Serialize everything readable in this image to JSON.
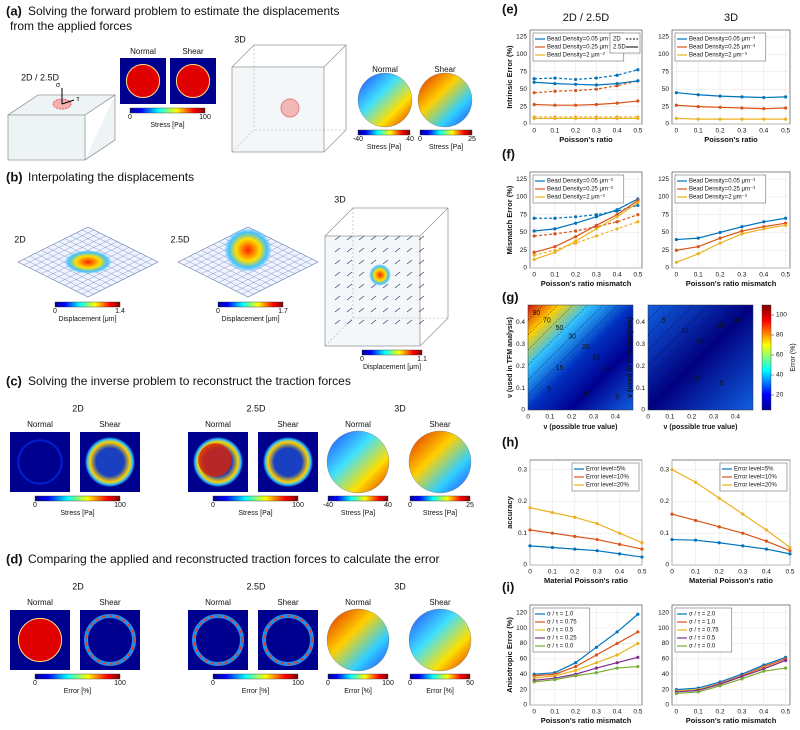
{
  "panel_a": {
    "label": "(a)",
    "title": [
      "Solving the forward problem to estimate the displacements",
      "from the applied forces"
    ],
    "view_2d": "2D / 2.5D",
    "sigma": "σ",
    "tau": "τ",
    "maps": [
      "Normal",
      "Shear"
    ],
    "map_colorbar": {
      "min": 0,
      "max": 100,
      "label": "Stress [Pa]"
    },
    "view_3d": "3D",
    "spheres": [
      "Normal",
      "Shear"
    ],
    "sphere_colorbars": [
      {
        "min": -40,
        "max": 40,
        "label": "Stress [Pa]"
      },
      {
        "min": 0,
        "max": 25,
        "label": "Stress [Pa]"
      }
    ]
  },
  "panel_b": {
    "label": "(b)",
    "title": "Interpolating the displacements",
    "views": [
      {
        "name": "2D",
        "colorbar": {
          "min": 0,
          "max": 1.4,
          "label": "Displacement [μm]"
        }
      },
      {
        "name": "2.5D",
        "colorbar": {
          "min": 0,
          "max": 1.7,
          "label": "Displacement [μm]"
        }
      },
      {
        "name": "3D",
        "colorbar": {
          "min": 0,
          "max": 1.1,
          "label": "Displacement [μm]"
        }
      }
    ]
  },
  "panel_c": {
    "label": "(c)",
    "title": "Solving the inverse problem to reconstruct the traction forces",
    "views": [
      {
        "name": "2D",
        "maps": [
          "Normal",
          "Shear"
        ],
        "colorbars": [
          {
            "min": 0,
            "max": 100,
            "label": "Stress [Pa]"
          }
        ]
      },
      {
        "name": "2.5D",
        "maps": [
          "Normal",
          "Shear"
        ],
        "colorbars": [
          {
            "min": 0,
            "max": 100,
            "label": "Stress [Pa]"
          }
        ]
      },
      {
        "name": "3D",
        "maps": [
          "Normal",
          "Shear"
        ],
        "colorbars": [
          {
            "min": -40,
            "max": 40,
            "label": "Stress [Pa]"
          },
          {
            "min": 0,
            "max": 25,
            "label": "Stress [Pa]"
          }
        ]
      }
    ]
  },
  "panel_d": {
    "label": "(d)",
    "title": "Comparing the applied and reconstructed traction forces to calculate the error",
    "views": [
      {
        "name": "2D",
        "maps": [
          "Normal",
          "Shear"
        ],
        "colorbars": [
          {
            "min": 0,
            "max": 100,
            "label": "Error [%]"
          }
        ]
      },
      {
        "name": "2.5D",
        "maps": [
          "Normal",
          "Shear"
        ],
        "colorbars": [
          {
            "min": 0,
            "max": 100,
            "label": "Error [%]"
          }
        ]
      },
      {
        "name": "3D",
        "maps": [
          "Normal",
          "Shear"
        ],
        "colorbars": [
          {
            "min": 0,
            "max": 100,
            "label": "Error [%]"
          },
          {
            "min": 0,
            "max": 50,
            "label": "Error [%]"
          }
        ]
      }
    ]
  },
  "panel_g": {
    "label": "(g)",
    "ylabel": "ν (used in TFM analysis)",
    "xlabel": "ν (possible true value)",
    "ticks": [
      0,
      0.1,
      0.2,
      0.3,
      0.4
    ],
    "colorbar_ticks": [
      20,
      40,
      60,
      80,
      100
    ],
    "colorbar_label": "Error (%)",
    "contours": [
      [
        "90",
        "70",
        "50",
        "30",
        "20",
        "15",
        "10",
        "5",
        "5",
        "10",
        "15"
      ],
      [
        "5",
        "10",
        "15",
        "20",
        "30",
        "5",
        "10"
      ]
    ]
  },
  "chart_data": [
    {
      "type": "line",
      "label": "(e)",
      "column_title": "2D / 2.5D",
      "ylabel": "Intrinsic Error (%)",
      "xlabel": "Poisson's ratio",
      "legend": "upper left",
      "x": [
        0,
        0.1,
        0.2,
        0.3,
        0.4,
        0.5
      ],
      "xlim": [
        -0.02,
        0.52
      ],
      "ylim": [
        0,
        135
      ],
      "xticks": [
        0,
        0.1,
        0.2,
        0.3,
        0.4,
        0.5
      ],
      "yticks": [
        0,
        25,
        50,
        75,
        100,
        125
      ],
      "series": [
        {
          "name": "Bead Density=0.05 μm⁻²",
          "color": "#0072bd",
          "values": [
            60,
            58,
            57,
            56,
            58,
            62
          ]
        },
        {
          "name": "Bead Density=0.25 μm⁻²",
          "color": "#d95319",
          "values": [
            28,
            27,
            27,
            28,
            30,
            33
          ]
        },
        {
          "name": "Bead Density=2 μm⁻²",
          "color": "#edb120",
          "values": [
            8,
            8,
            8,
            8,
            8,
            8
          ]
        }
      ],
      "dashed_series": [
        {
          "color": "#0072bd",
          "values": [
            65,
            66,
            64,
            66,
            70,
            78
          ]
        },
        {
          "color": "#d95319",
          "values": [
            45,
            47,
            48,
            50,
            55,
            62
          ]
        },
        {
          "color": "#edb120",
          "values": [
            10,
            10,
            10,
            10,
            10,
            10
          ]
        }
      ],
      "style_legend": [
        {
          "name": "2D",
          "dash": true
        },
        {
          "name": "2.5D",
          "dash": false
        }
      ]
    },
    {
      "type": "line",
      "column_title": "3D",
      "xlabel": "Poisson's ratio",
      "legend": "upper left",
      "x": [
        0,
        0.1,
        0.2,
        0.3,
        0.4,
        0.5
      ],
      "xlim": [
        -0.02,
        0.52
      ],
      "ylim": [
        0,
        135
      ],
      "xticks": [
        0,
        0.1,
        0.2,
        0.3,
        0.4,
        0.5
      ],
      "yticks": [
        0,
        25,
        50,
        75,
        100,
        125
      ],
      "series": [
        {
          "name": "Bead Density=0.05 μm⁻³",
          "color": "#0072bd",
          "values": [
            45,
            42,
            40,
            39,
            38,
            39
          ]
        },
        {
          "name": "Bead Density=0.25 μm⁻³",
          "color": "#d95319",
          "values": [
            27,
            25,
            24,
            23,
            22,
            23
          ]
        },
        {
          "name": "Bead Density=2 μm⁻³",
          "color": "#edb120",
          "values": [
            8,
            7,
            7,
            7,
            7,
            7
          ]
        }
      ]
    },
    {
      "type": "line",
      "label": "(f)",
      "ylabel": "Mismatch Error (%)",
      "xlabel": "Poisson's ratio mismatch",
      "legend": "upper left",
      "x": [
        0,
        0.1,
        0.2,
        0.3,
        0.4,
        0.5
      ],
      "xlim": [
        -0.02,
        0.52
      ],
      "ylim": [
        0,
        135
      ],
      "xticks": [
        0,
        0.1,
        0.2,
        0.3,
        0.4,
        0.5
      ],
      "yticks": [
        0,
        25,
        50,
        75,
        100,
        125
      ],
      "series": [
        {
          "name": "Bead Density=0.05 μm⁻²",
          "color": "#0072bd",
          "values": [
            52,
            55,
            63,
            72,
            82,
            97
          ]
        },
        {
          "name": "Bead Density=0.25 μm⁻²",
          "color": "#d95319",
          "values": [
            22,
            30,
            44,
            60,
            75,
            95
          ]
        },
        {
          "name": "Bead Density=2 μm⁻²",
          "color": "#edb120",
          "values": [
            12,
            22,
            38,
            55,
            72,
            92
          ]
        }
      ],
      "dashed_series": [
        {
          "color": "#0072bd",
          "values": [
            70,
            70,
            72,
            75,
            80,
            88
          ]
        },
        {
          "color": "#d95319",
          "values": [
            45,
            48,
            52,
            58,
            65,
            75
          ]
        },
        {
          "color": "#edb120",
          "values": [
            18,
            25,
            35,
            45,
            55,
            65
          ]
        }
      ]
    },
    {
      "type": "line",
      "xlabel": "Poisson's ratio mismatch",
      "legend": "upper left",
      "x": [
        0,
        0.1,
        0.2,
        0.3,
        0.4,
        0.5
      ],
      "xlim": [
        -0.02,
        0.52
      ],
      "ylim": [
        0,
        135
      ],
      "xticks": [
        0,
        0.1,
        0.2,
        0.3,
        0.4,
        0.5
      ],
      "yticks": [
        0,
        25,
        50,
        75,
        100,
        125
      ],
      "series": [
        {
          "name": "Bead Density=0.05 μm⁻³",
          "color": "#0072bd",
          "values": [
            40,
            42,
            50,
            58,
            65,
            70
          ]
        },
        {
          "name": "Bead Density=0.25 μm⁻³",
          "color": "#d95319",
          "values": [
            25,
            30,
            42,
            52,
            58,
            63
          ]
        },
        {
          "name": "Bead Density=2 μm⁻³",
          "color": "#edb120",
          "values": [
            8,
            20,
            35,
            48,
            55,
            60
          ]
        }
      ]
    },
    {
      "type": "line",
      "label": "(h)",
      "ylabel": "accuracy",
      "xlabel": "Material Poisson's ratio",
      "legend": "upper right",
      "x": [
        0,
        0.1,
        0.2,
        0.3,
        0.4,
        0.5
      ],
      "xlim": [
        0,
        0.5
      ],
      "ylim": [
        0,
        0.33
      ],
      "xticks": [
        0,
        0.1,
        0.2,
        0.3,
        0.4,
        0.5
      ],
      "yticks": [
        0,
        0.1,
        0.2,
        0.3
      ],
      "series": [
        {
          "name": "Error level=5%",
          "color": "#0072bd",
          "values": [
            0.06,
            0.055,
            0.05,
            0.045,
            0.035,
            0.025
          ]
        },
        {
          "name": "Error level=10%",
          "color": "#d95319",
          "values": [
            0.11,
            0.1,
            0.09,
            0.08,
            0.065,
            0.05
          ]
        },
        {
          "name": "Error level=20%",
          "color": "#edb120",
          "values": [
            0.18,
            0.165,
            0.15,
            0.13,
            0.1,
            0.07
          ]
        }
      ]
    },
    {
      "type": "line",
      "xlabel": "Material Poisson's ratio",
      "legend": "upper right",
      "x": [
        0,
        0.1,
        0.2,
        0.3,
        0.4,
        0.5
      ],
      "xlim": [
        0,
        0.5
      ],
      "ylim": [
        0,
        0.33
      ],
      "xticks": [
        0,
        0.1,
        0.2,
        0.3,
        0.4,
        0.5
      ],
      "yticks": [
        0,
        0.1,
        0.2,
        0.3
      ],
      "series": [
        {
          "name": "Error level=5%",
          "color": "#0072bd",
          "values": [
            0.08,
            0.078,
            0.07,
            0.06,
            0.05,
            0.035
          ]
        },
        {
          "name": "Error level=10%",
          "color": "#d95319",
          "values": [
            0.16,
            0.14,
            0.12,
            0.1,
            0.075,
            0.045
          ]
        },
        {
          "name": "Error level=20%",
          "color": "#edb120",
          "values": [
            0.3,
            0.26,
            0.21,
            0.16,
            0.11,
            0.055
          ]
        }
      ]
    },
    {
      "type": "line",
      "label": "(i)",
      "ylabel": "Anisotropic Error (%)",
      "xlabel": "Poisson's ratio mismatch",
      "legend": "upper left",
      "x": [
        0,
        0.1,
        0.2,
        0.3,
        0.4,
        0.5
      ],
      "xlim": [
        -0.02,
        0.52
      ],
      "ylim": [
        0,
        130
      ],
      "xticks": [
        0,
        0.1,
        0.2,
        0.3,
        0.4,
        0.5
      ],
      "yticks": [
        0,
        20,
        40,
        60,
        80,
        100,
        120
      ],
      "series": [
        {
          "name": "σ / τ = 1.0",
          "color": "#0072bd",
          "values": [
            40,
            42,
            55,
            75,
            95,
            118
          ]
        },
        {
          "name": "σ / τ = 0.75",
          "color": "#d95319",
          "values": [
            38,
            40,
            50,
            65,
            80,
            95
          ]
        },
        {
          "name": "σ / τ = 0.5",
          "color": "#edb120",
          "values": [
            35,
            38,
            45,
            55,
            65,
            80
          ]
        },
        {
          "name": "σ / τ = 0.25",
          "color": "#7e2f8e",
          "values": [
            32,
            35,
            40,
            48,
            55,
            62
          ]
        },
        {
          "name": "σ / τ = 0.0",
          "color": "#77ac30",
          "values": [
            30,
            33,
            38,
            42,
            48,
            50
          ]
        }
      ]
    },
    {
      "type": "line",
      "xlabel": "Poisson's ratio mismatch",
      "legend": "upper left",
      "x": [
        0,
        0.1,
        0.2,
        0.3,
        0.4,
        0.5
      ],
      "xlim": [
        -0.02,
        0.52
      ],
      "ylim": [
        0,
        130
      ],
      "xticks": [
        0,
        0.1,
        0.2,
        0.3,
        0.4,
        0.5
      ],
      "yticks": [
        0,
        20,
        40,
        60,
        80,
        100,
        120
      ],
      "series": [
        {
          "name": "σ / τ = 2.0",
          "color": "#0072bd",
          "values": [
            20,
            22,
            30,
            40,
            52,
            62
          ]
        },
        {
          "name": "σ / τ = 1.0",
          "color": "#d95319",
          "values": [
            18,
            20,
            28,
            38,
            50,
            60
          ]
        },
        {
          "name": "σ / τ = 0.75",
          "color": "#edb120",
          "values": [
            18,
            20,
            27,
            37,
            48,
            58
          ]
        },
        {
          "name": "σ / τ = 0.5",
          "color": "#7e2f8e",
          "values": [
            17,
            19,
            27,
            37,
            47,
            58
          ]
        },
        {
          "name": "σ / τ = 0.0",
          "color": "#77ac30",
          "values": [
            15,
            17,
            25,
            34,
            44,
            48
          ]
        }
      ]
    }
  ]
}
